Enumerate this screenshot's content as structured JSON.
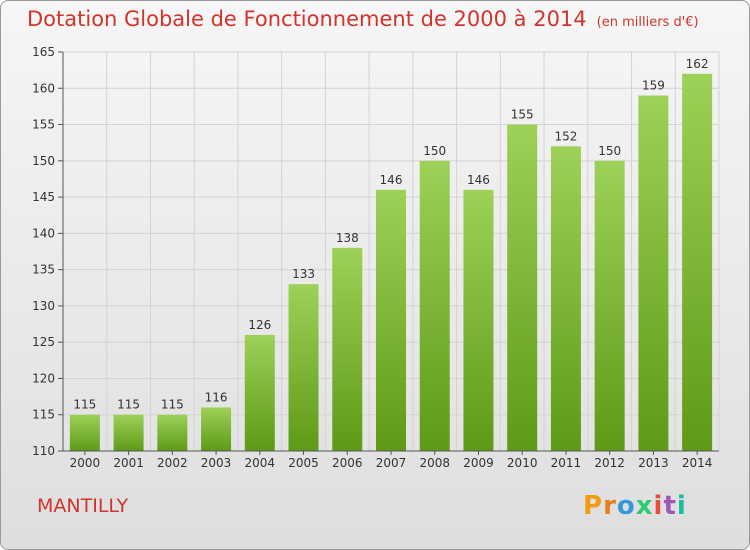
{
  "title": "Dotation Globale de Fonctionnement de 2000 à 2014",
  "subtitle": "(en milliers d'€)",
  "commune": "MANTILLY",
  "logo": {
    "letters": [
      "P",
      "r",
      "o",
      "x",
      "i",
      "t",
      "i"
    ],
    "colors": [
      "#f39c12",
      "#e67e22",
      "#3498db",
      "#2ecc71",
      "#e74c3c",
      "#9b59b6",
      "#1abc9c"
    ]
  },
  "colors": {
    "title": "#d0342c",
    "bar_top": "#9dd158",
    "bar_bottom": "#5e9a16",
    "grid": "#d3d3d3",
    "axis": "#555555"
  },
  "chart_data": {
    "type": "bar",
    "categories": [
      "2000",
      "2001",
      "2002",
      "2003",
      "2004",
      "2005",
      "2006",
      "2007",
      "2008",
      "2009",
      "2010",
      "2011",
      "2012",
      "2013",
      "2014"
    ],
    "values": [
      115,
      115,
      115,
      116,
      126,
      133,
      138,
      146,
      150,
      146,
      155,
      152,
      150,
      159,
      162
    ],
    "ylim": [
      110,
      165
    ],
    "yticks": [
      110,
      115,
      120,
      125,
      130,
      135,
      140,
      145,
      150,
      155,
      160,
      165
    ],
    "grid": true
  }
}
